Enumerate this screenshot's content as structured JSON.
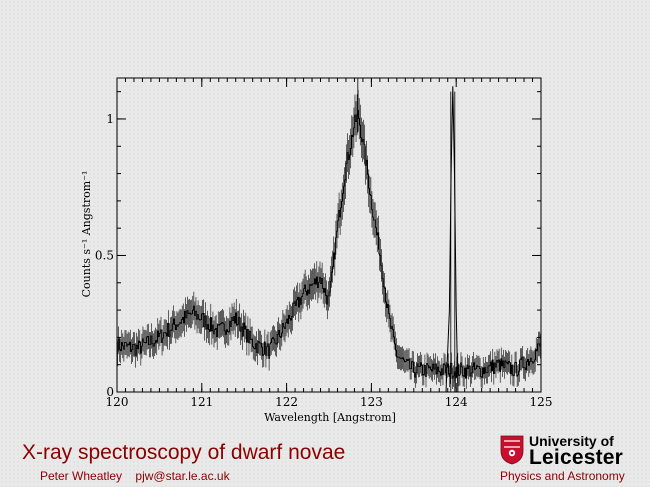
{
  "slide": {
    "title": "X-ray spectroscopy of dwarf novae",
    "author": "Peter Wheatley",
    "email": "pjw@star.le.ac.uk",
    "department": "Physics and Astronomy",
    "logo": {
      "university_of": "University of",
      "name": "Leicester",
      "crest_color": "#c8102e"
    }
  },
  "chart_data": {
    "type": "line",
    "xlabel": "Wavelength [Angstrom]",
    "ylabel": "Counts s⁻¹ Angstrom⁻¹",
    "xlim": [
      120,
      125
    ],
    "ylim": [
      0,
      1.15
    ],
    "xticks": [
      120,
      121,
      122,
      123,
      124,
      125
    ],
    "xtick_labels": [
      "120",
      "121",
      "122",
      "123",
      "124",
      "125"
    ],
    "yticks": [
      0,
      0.5,
      1
    ],
    "ytick_labels": [
      "0",
      "0.5",
      "1"
    ],
    "series": [
      {
        "style": "histogram with error bars",
        "x": [
          120.0,
          120.25,
          120.5,
          120.7,
          120.9,
          121.0,
          121.2,
          121.4,
          121.6,
          121.8,
          122.0,
          122.2,
          122.4,
          122.5,
          122.6,
          122.7,
          122.8,
          122.85,
          122.9,
          123.0,
          123.1,
          123.2,
          123.3,
          123.4,
          123.5,
          123.7,
          123.9,
          124.1,
          124.3,
          124.5,
          124.7,
          124.9,
          125.0
        ],
        "y": [
          0.17,
          0.16,
          0.2,
          0.25,
          0.29,
          0.27,
          0.22,
          0.27,
          0.18,
          0.15,
          0.25,
          0.36,
          0.42,
          0.33,
          0.6,
          0.82,
          0.98,
          1.02,
          0.92,
          0.7,
          0.52,
          0.28,
          0.14,
          0.1,
          0.08,
          0.08,
          0.08,
          0.08,
          0.08,
          0.1,
          0.08,
          0.13,
          0.17
        ]
      },
      {
        "style": "narrow line profile",
        "x": [
          123.88,
          123.92,
          123.94,
          123.96,
          123.98,
          124.0,
          124.02
        ],
        "y": [
          0.0,
          0.3,
          0.8,
          1.12,
          0.8,
          0.3,
          0.0
        ]
      }
    ]
  }
}
